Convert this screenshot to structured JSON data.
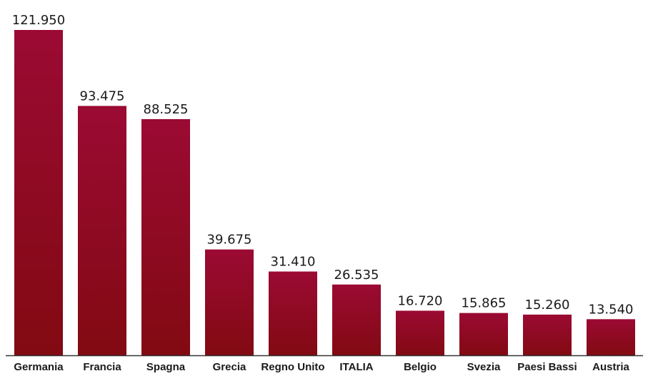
{
  "chart_data": {
    "type": "bar",
    "categories": [
      "Germania",
      "Francia",
      "Spagna",
      "Grecia",
      "Regno Unito",
      "ITALIA",
      "Belgio",
      "Svezia",
      "Paesi Bassi",
      "Austria"
    ],
    "values": [
      121950,
      93475,
      88525,
      39675,
      31410,
      26535,
      16720,
      15865,
      15260,
      13540
    ],
    "value_labels": [
      "121.950",
      "93.475",
      "88.525",
      "39.675",
      "31.410",
      "26.535",
      "16.720",
      "15.865",
      "15.260",
      "13.540"
    ],
    "ylim": [
      0,
      121950
    ],
    "grid": false,
    "legend": "none",
    "colors": {
      "bar_top": "#9b0a33",
      "bar_bottom": "#820a12",
      "axis": "#333333"
    }
  }
}
